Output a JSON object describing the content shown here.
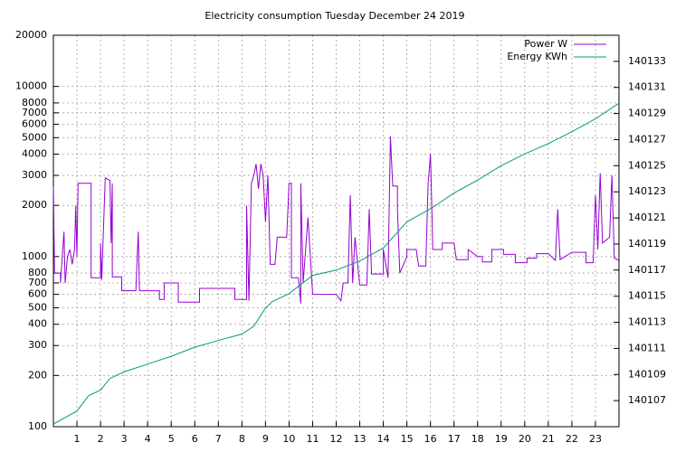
{
  "chart_data": {
    "type": "line",
    "title": "Electricity consumption Tuesday December 24 2019",
    "xlim": [
      0,
      24
    ],
    "xticks": [
      1,
      2,
      3,
      4,
      5,
      6,
      7,
      8,
      9,
      10,
      11,
      12,
      13,
      14,
      15,
      16,
      17,
      18,
      19,
      20,
      21,
      22,
      23
    ],
    "ylim": [
      100,
      20000
    ],
    "log_y": true,
    "yticks": [
      100,
      200,
      300,
      400,
      500,
      600,
      700,
      800,
      1000,
      2000,
      3000,
      4000,
      5000,
      6000,
      7000,
      8000,
      10000,
      20000
    ],
    "y2lim": [
      140105,
      140135
    ],
    "y2ticks": [
      140107,
      140109,
      140111,
      140113,
      140115,
      140117,
      140119,
      140121,
      140123,
      140125,
      140127,
      140129,
      140131,
      140133
    ],
    "grid": true,
    "legend": "top-right",
    "series": [
      {
        "name": "Power W",
        "color": "#9400d3",
        "x": [
          0,
          0.05,
          0.3,
          0.3,
          0.45,
          0.5,
          0.6,
          0.7,
          0.8,
          0.9,
          0.95,
          1,
          1.05,
          1.3,
          1.6,
          1.6,
          2,
          2,
          2.05,
          2.2,
          2.4,
          2.45,
          2.5,
          2.5,
          2.9,
          2.9,
          3.5,
          3.6,
          3.65,
          4.5,
          4.5,
          4.7,
          4.7,
          5.3,
          5.3,
          6.2,
          6.2,
          7,
          7.7,
          7.7,
          8.2,
          8.2,
          8.3,
          8.4,
          8.5,
          8.6,
          8.7,
          8.8,
          8.9,
          9,
          9.1,
          9.2,
          9.4,
          9.5,
          9.9,
          10,
          10.1,
          10.1,
          10.4,
          10.5,
          10.5,
          10.6,
          10.8,
          11,
          12,
          12.2,
          12.3,
          12.5,
          12.6,
          12.7,
          12.8,
          13,
          13.3,
          13.4,
          13.5,
          14,
          14,
          14.2,
          14.3,
          14.4,
          14.6,
          14.6,
          14.7,
          15,
          15,
          15.4,
          15.5,
          15.8,
          15.9,
          16,
          16.1,
          16.5,
          16.5,
          17,
          17.1,
          17.6,
          17.6,
          18,
          18.2,
          18.2,
          18.6,
          18.6,
          19.1,
          19.1,
          19.6,
          19.6,
          20.1,
          20.1,
          20.5,
          20.5,
          21,
          21.3,
          21.4,
          21.5,
          22,
          22.6,
          22.6,
          22.9,
          23,
          23.1,
          23.2,
          23.3,
          23.6,
          23.7,
          23.8,
          24
        ],
        "values": [
          2600,
          800,
          800,
          700,
          1400,
          700,
          1000,
          1100,
          900,
          1100,
          2000,
          1000,
          2700,
          2700,
          2700,
          750,
          750,
          1200,
          730,
          2900,
          2800,
          1200,
          2700,
          760,
          760,
          630,
          630,
          1400,
          630,
          630,
          560,
          560,
          700,
          700,
          540,
          540,
          650,
          650,
          650,
          560,
          560,
          2000,
          550,
          2700,
          3000,
          3500,
          2500,
          3500,
          3000,
          1600,
          3000,
          900,
          900,
          1300,
          1300,
          2700,
          2700,
          750,
          750,
          530,
          2700,
          700,
          1700,
          600,
          600,
          550,
          700,
          700,
          2300,
          700,
          1300,
          680,
          680,
          1900,
          790,
          790,
          1100,
          750,
          5100,
          2600,
          2600,
          1900,
          800,
          1000,
          1100,
          1100,
          880,
          880,
          2700,
          4000,
          1100,
          1100,
          1200,
          1200,
          960,
          960,
          1100,
          1000,
          1000,
          930,
          930,
          1100,
          1100,
          1030,
          1030,
          920,
          920,
          980,
          980,
          1040,
          1040,
          950,
          1900,
          960,
          1060,
          1060,
          920,
          920,
          2300,
          1100,
          3100,
          1200,
          1300,
          3000,
          980,
          950
        ]
      },
      {
        "name": "Energy KWh",
        "color": "#009e73",
        "axis": "y2",
        "x": [
          0,
          1,
          1.5,
          2,
          2.4,
          3,
          4,
          5,
          6,
          7,
          8,
          8.5,
          9,
          9.3,
          10,
          11,
          12,
          13,
          14,
          15,
          16,
          17,
          18,
          19,
          20,
          21,
          22,
          23,
          24
        ],
        "values": [
          140105.2,
          140106.2,
          140107.4,
          140107.8,
          140108.7,
          140109.2,
          140109.8,
          140110.4,
          140111.1,
          140111.6,
          140112.1,
          140112.7,
          140114.1,
          140114.6,
          140115.2,
          140116.6,
          140117.0,
          140117.7,
          140118.7,
          140120.7,
          140121.7,
          140122.9,
          140123.9,
          140125.0,
          140125.9,
          140126.7,
          140127.6,
          140128.6,
          140129.8
        ]
      }
    ]
  }
}
